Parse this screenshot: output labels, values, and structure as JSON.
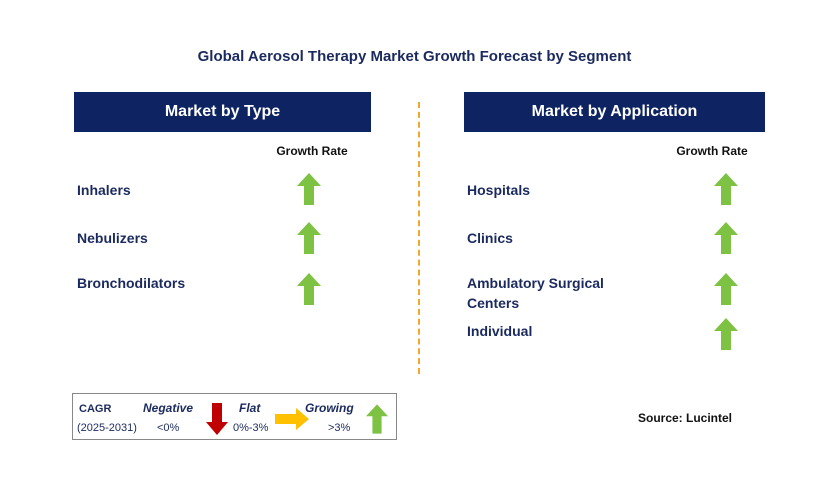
{
  "title": "Global Aerosol Therapy Market Growth Forecast by Segment",
  "panels": [
    {
      "header": "Market by Type",
      "growth_rate_label": "Growth Rate",
      "segments": [
        {
          "label": "Inhalers",
          "trend": "growing"
        },
        {
          "label": "Nebulizers",
          "trend": "growing"
        },
        {
          "label": "Bronchodilators",
          "trend": "growing"
        }
      ]
    },
    {
      "header": "Market by Application",
      "growth_rate_label": "Growth Rate",
      "segments": [
        {
          "label": "Hospitals",
          "trend": "growing"
        },
        {
          "label": "Clinics",
          "trend": "growing"
        },
        {
          "label": "Ambulatory Surgical Centers",
          "trend": "growing"
        },
        {
          "label": "Individual",
          "trend": "growing"
        }
      ]
    }
  ],
  "legend": {
    "cagr": "CAGR",
    "period": "(2025-2031)",
    "negative": {
      "label": "Negative",
      "range": "<0%"
    },
    "flat": {
      "label": "Flat",
      "range": "0%-3%"
    },
    "growing": {
      "label": "Growing",
      "range": ">3%"
    }
  },
  "source": "Source: Lucintel",
  "colors": {
    "header_bg": "#0e2361",
    "growing_arrow": "#7dc242",
    "negative_arrow": "#c00000",
    "flat_arrow": "#ffc000",
    "divider": "#f0a830"
  },
  "chart_data": {
    "type": "table",
    "title": "Global Aerosol Therapy Market Growth Forecast by Segment",
    "tables": [
      {
        "name": "Market by Type",
        "column": "Growth Rate",
        "rows": [
          {
            "segment": "Inhalers",
            "growth": "Growing"
          },
          {
            "segment": "Nebulizers",
            "growth": "Growing"
          },
          {
            "segment": "Bronchodilators",
            "growth": "Growing"
          }
        ]
      },
      {
        "name": "Market by Application",
        "column": "Growth Rate",
        "rows": [
          {
            "segment": "Hospitals",
            "growth": "Growing"
          },
          {
            "segment": "Clinics",
            "growth": "Growing"
          },
          {
            "segment": "Ambulatory Surgical Centers",
            "growth": "Growing"
          },
          {
            "segment": "Individual",
            "growth": "Growing"
          }
        ]
      }
    ],
    "legend": [
      {
        "category": "Negative",
        "range": "<0%"
      },
      {
        "category": "Flat",
        "range": "0%-3%"
      },
      {
        "category": "Growing",
        "range": ">3%"
      }
    ]
  }
}
